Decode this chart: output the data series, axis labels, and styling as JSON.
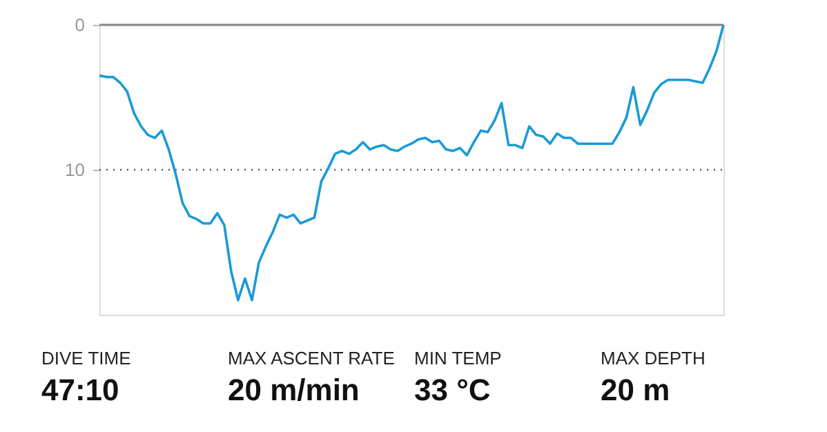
{
  "chart_data": {
    "type": "line",
    "categories": [
      null,
      null,
      null,
      null,
      null,
      null,
      null,
      null,
      null,
      null,
      null,
      null,
      null,
      null,
      null,
      null,
      null,
      null,
      null,
      null,
      null,
      null,
      null,
      null,
      null,
      null,
      null,
      null,
      null,
      null,
      null,
      null,
      null,
      null,
      null,
      null,
      null,
      null,
      null,
      null,
      null,
      null,
      null,
      null,
      null,
      null,
      null,
      null,
      null,
      null,
      null,
      null,
      null,
      null,
      null,
      null,
      null,
      null,
      null,
      null,
      null,
      null,
      null,
      null,
      null,
      null,
      null,
      null,
      null,
      null,
      null,
      null,
      null,
      null,
      null,
      null,
      null,
      null,
      null,
      null,
      null,
      null,
      null,
      null,
      null,
      null,
      null,
      null,
      null,
      null,
      null
    ],
    "series": [
      {
        "color": "#1a9ad6",
        "values": [
          3.5,
          3.6,
          3.6,
          4.0,
          4.6,
          6.1,
          7.0,
          7.6,
          7.8,
          7.3,
          8.6,
          10.3,
          12.3,
          13.2,
          13.4,
          13.7,
          13.7,
          13.0,
          13.8,
          17.0,
          19.0,
          17.5,
          19.0,
          16.4,
          15.3,
          14.3,
          13.1,
          13.3,
          13.1,
          13.7,
          13.5,
          13.3,
          10.8,
          9.9,
          8.9,
          8.7,
          8.9,
          8.6,
          8.1,
          8.6,
          8.4,
          8.3,
          8.6,
          8.7,
          8.4,
          8.2,
          7.9,
          7.8,
          8.1,
          8.0,
          8.6,
          8.7,
          8.5,
          9.0,
          8.1,
          7.3,
          7.4,
          6.6,
          5.4,
          8.3,
          8.3,
          8.5,
          7.0,
          7.6,
          7.7,
          8.2,
          7.5,
          7.8,
          7.8,
          8.2,
          8.2,
          8.2,
          8.2,
          8.2,
          8.2,
          7.4,
          6.4,
          4.3,
          6.9,
          5.9,
          4.7,
          4.1,
          3.8,
          3.8,
          3.8,
          3.8,
          3.9,
          4.0,
          3.0,
          1.8,
          0
        ]
      }
    ],
    "ylim": [
      20,
      0
    ],
    "yticks": [
      0,
      10
    ],
    "tick_labels": "y",
    "grid": false,
    "line_style": "solid",
    "ref_lines": [
      {
        "axis": "y",
        "value": 0,
        "color": "#888888",
        "line_style": "solid"
      },
      {
        "axis": "y",
        "value": 10,
        "color": "#555555",
        "line_style": "dotted"
      }
    ],
    "annotations": [
      "DIVE TIME",
      "47:10",
      "MAX ASCENT RATE",
      "20 m/min",
      "MIN TEMP",
      "33 °C",
      "MAX DEPTH",
      "20 m"
    ]
  }
}
